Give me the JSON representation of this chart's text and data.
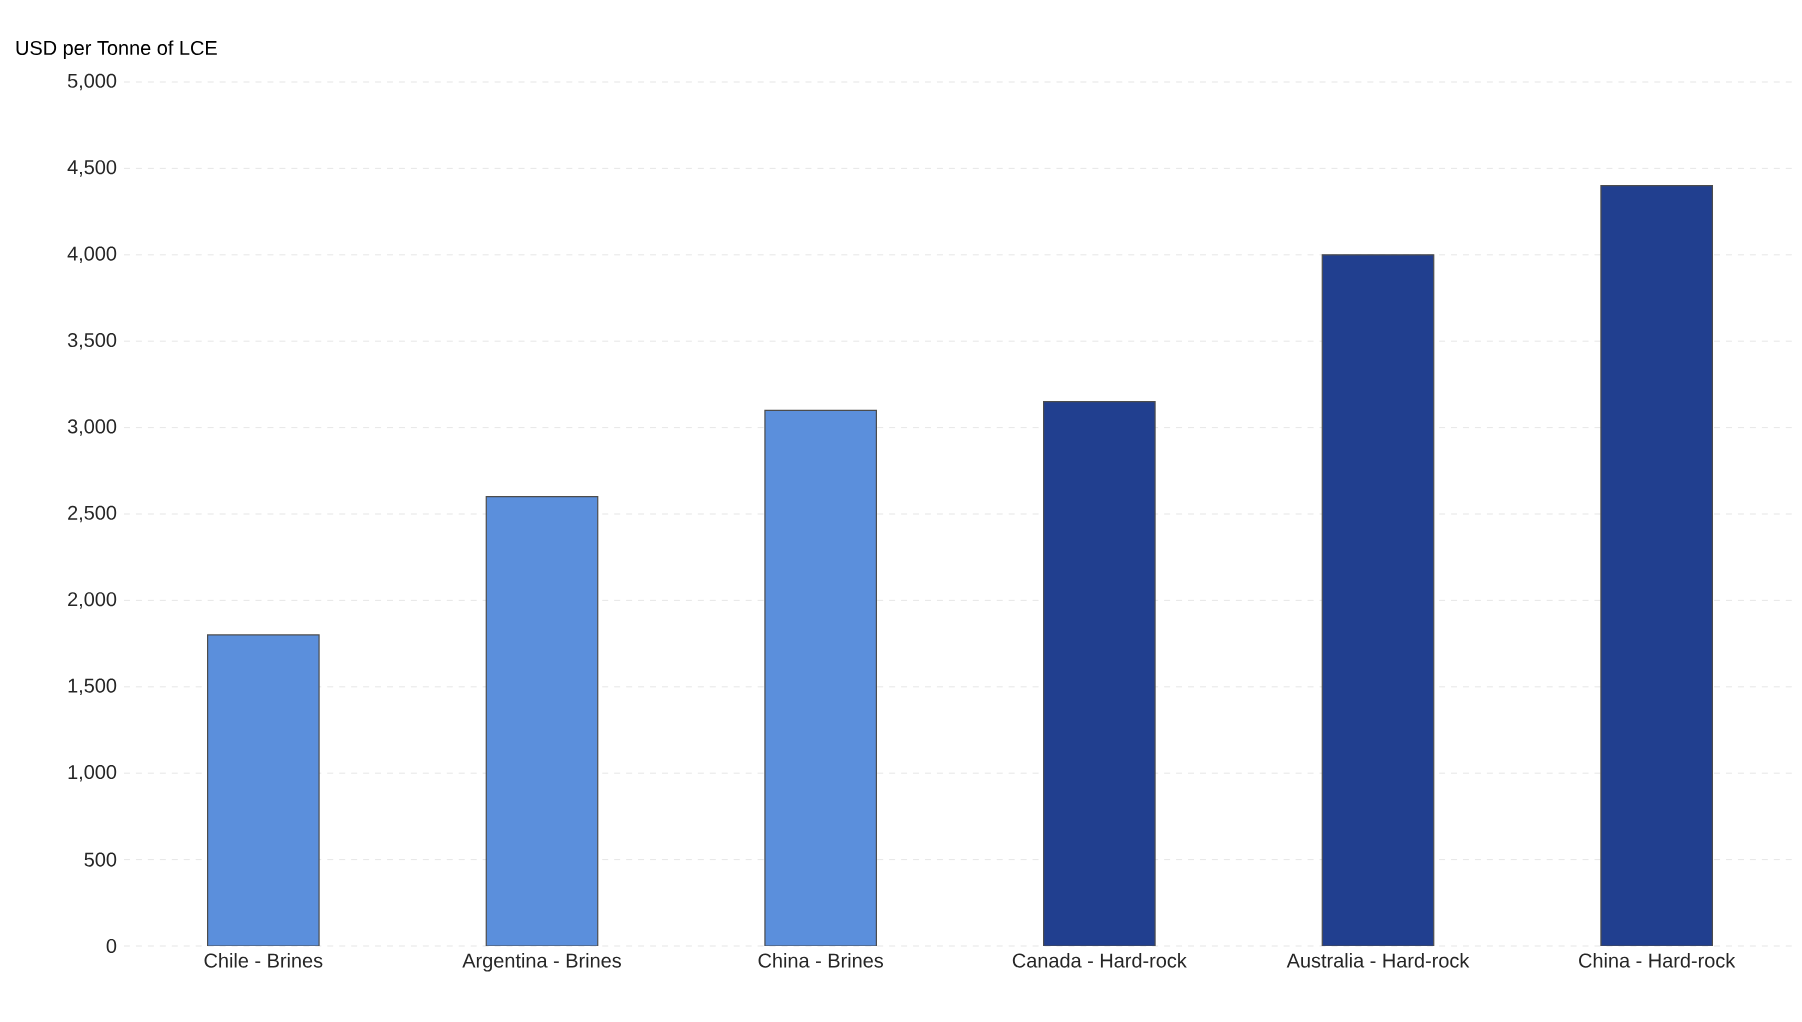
{
  "chart_data": {
    "type": "bar",
    "ylabel": "USD per Tonne of LCE",
    "categories": [
      "Chile - Brines",
      "Argentina - Brines",
      "China - Brines",
      "Canada - Hard-rock",
      "Australia - Hard-rock",
      "China - Hard-rock"
    ],
    "values": [
      1800,
      2600,
      3100,
      3150,
      4000,
      4400
    ],
    "colors": [
      "#5b8fdc",
      "#5b8fdc",
      "#5b8fdc",
      "#213f8f",
      "#213f8f",
      "#213f8f"
    ],
    "ylim": [
      0,
      5000
    ],
    "yticks": [
      0,
      500,
      {
        "value": 1000,
        "label": "1,000"
      },
      {
        "value": 1500,
        "label": "1,500"
      },
      {
        "value": 2000,
        "label": "2,000"
      },
      {
        "value": 2500,
        "label": "2,500"
      },
      {
        "value": 3000,
        "label": "3,000"
      },
      {
        "value": 3500,
        "label": "3,500"
      },
      {
        "value": 4000,
        "label": "4,000"
      },
      {
        "value": 4500,
        "label": "4,500"
      },
      {
        "value": 5000,
        "label": "5,000"
      }
    ],
    "grid": "y"
  }
}
